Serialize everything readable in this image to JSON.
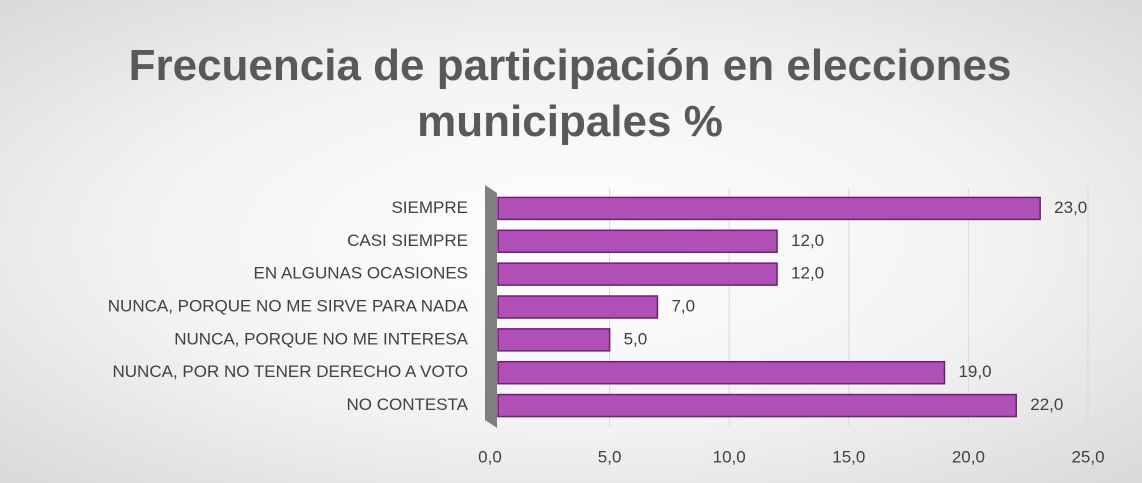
{
  "chart_data": {
    "type": "bar",
    "orientation": "horizontal",
    "title": "Frecuencia de participación en elecciones municipales %",
    "categories": [
      "SIEMPRE",
      "CASI SIEMPRE",
      "EN ALGUNAS OCASIONES",
      "NUNCA, PORQUE NO ME SIRVE PARA NADA",
      "NUNCA, PORQUE NO ME INTERESA",
      "NUNCA, POR NO TENER DERECHO A VOTO",
      "NO CONTESTA"
    ],
    "values": [
      23,
      12,
      12,
      7,
      5,
      19,
      22
    ],
    "value_labels": [
      "23,0",
      "12,0",
      "12,0",
      "7,0",
      "5,0",
      "19,0",
      "22,0"
    ],
    "color": "#b04fb5",
    "xlim": [
      0,
      25
    ],
    "xticks": [
      {
        "value": 0,
        "label": "0,0"
      },
      {
        "value": 5,
        "label": "5,0"
      },
      {
        "value": 10,
        "label": "10,0"
      },
      {
        "value": 15,
        "label": "15,0"
      },
      {
        "value": 20,
        "label": "20,0"
      },
      {
        "value": 25,
        "label": "25,0"
      }
    ],
    "grid": true
  }
}
